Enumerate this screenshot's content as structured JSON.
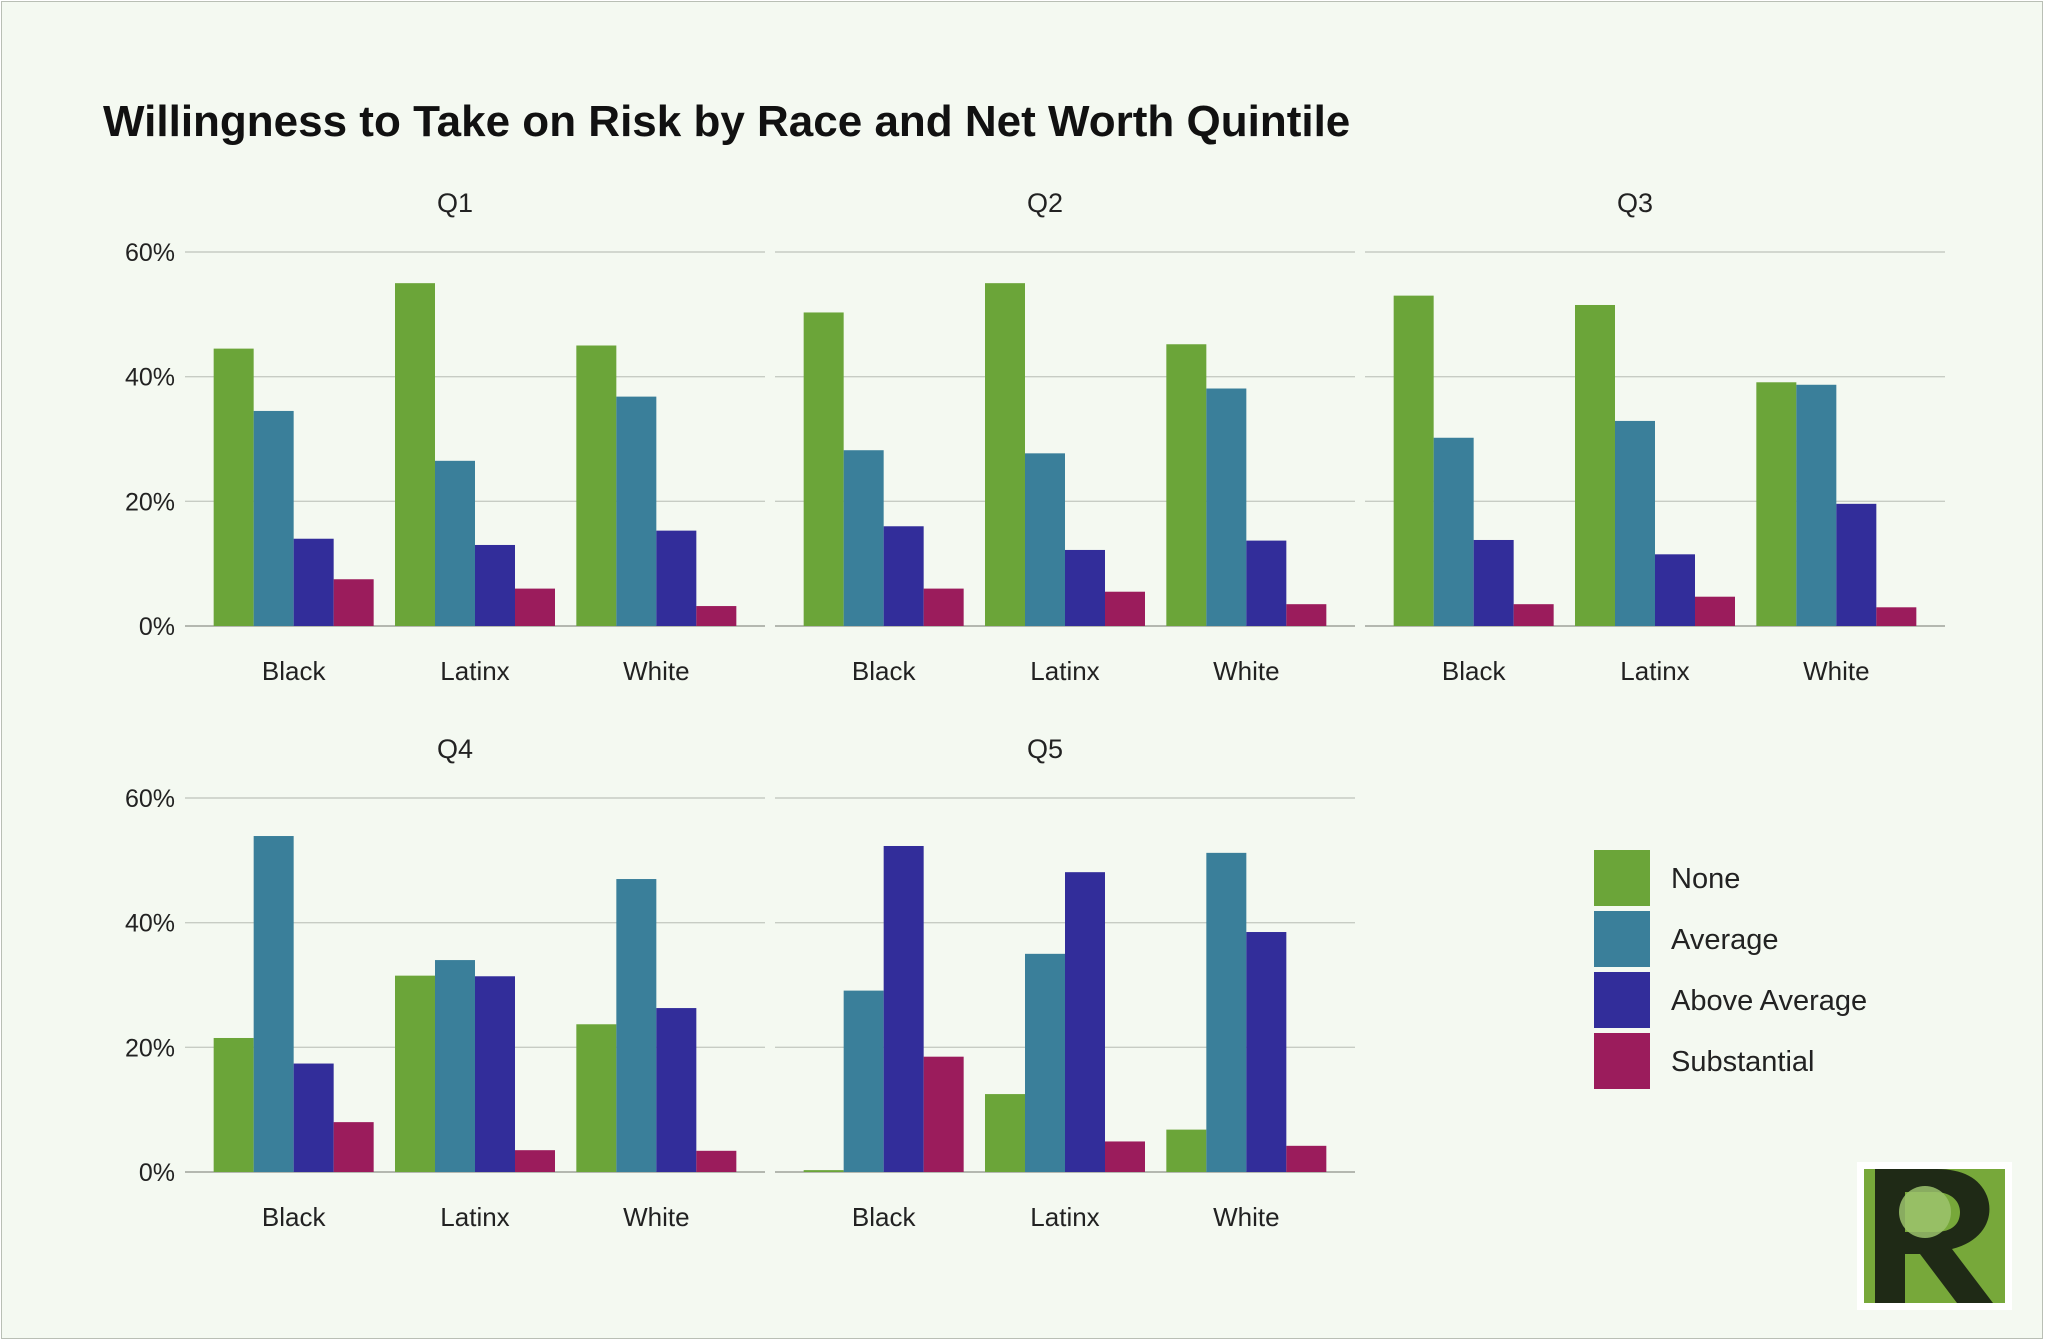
{
  "chart_data": {
    "type": "bar",
    "title": "Willingness to Take on Risk by Race and Net Worth Quintile",
    "categories": [
      "Black",
      "Latinx",
      "White"
    ],
    "series_names": [
      "None",
      "Average",
      "Above Average",
      "Substantial"
    ],
    "colors": [
      "#6ba539",
      "#3a7f9a",
      "#322d9a",
      "#9b1c5c"
    ],
    "ylim": [
      0,
      60
    ],
    "yticks": [
      0,
      20,
      40,
      60
    ],
    "ytick_labels": [
      "0%",
      "20%",
      "40%",
      "60%"
    ],
    "grid": true,
    "legend_placement": "bottom-right",
    "panels": [
      {
        "name": "Q1",
        "values": [
          [
            44.5,
            34.5,
            14,
            7.5
          ],
          [
            55,
            26.5,
            13,
            6
          ],
          [
            45,
            36.8,
            15.3,
            3.2
          ]
        ]
      },
      {
        "name": "Q2",
        "values": [
          [
            50.3,
            28.2,
            16,
            6
          ],
          [
            55,
            27.7,
            12.2,
            5.5
          ],
          [
            45.2,
            38.1,
            13.7,
            3.5
          ]
        ]
      },
      {
        "name": "Q3",
        "values": [
          [
            53,
            30.2,
            13.8,
            3.5
          ],
          [
            51.5,
            32.9,
            11.5,
            4.7
          ],
          [
            39.1,
            38.7,
            19.6,
            3
          ]
        ]
      },
      {
        "name": "Q4",
        "values": [
          [
            21.5,
            53.9,
            17.4,
            8
          ],
          [
            31.5,
            34,
            31.4,
            3.5
          ],
          [
            23.7,
            47,
            26.3,
            3.4
          ]
        ]
      },
      {
        "name": "Q5",
        "values": [
          [
            0.3,
            29.1,
            52.3,
            18.5
          ],
          [
            12.5,
            35,
            48.1,
            4.9
          ],
          [
            6.8,
            51.2,
            38.5,
            4.2
          ]
        ]
      }
    ]
  },
  "logo": {
    "letter": "R"
  }
}
